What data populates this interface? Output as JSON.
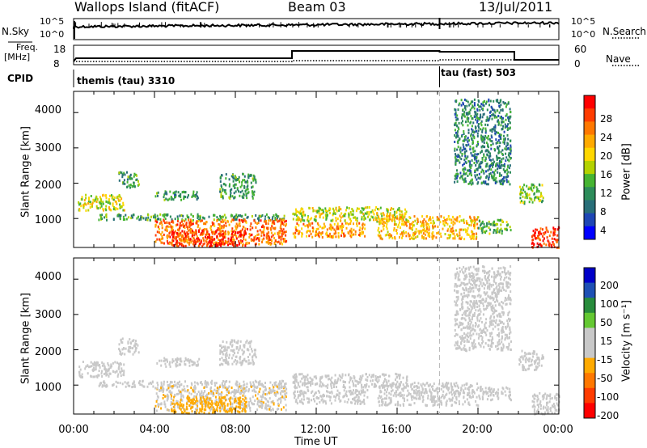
{
  "header": {
    "site": "Wallops Island (fitACF)",
    "beam": "Beam 03",
    "date": "13/Jul/2011"
  },
  "strips": {
    "nsky_label": "N.Sky",
    "nsky_ticks": [
      "10^5",
      "10^0"
    ],
    "nsearch_label": "N.Search",
    "nsearch_ticks": [
      "10^5",
      "10^0"
    ],
    "freq_label_1": "Freq.",
    "freq_label_2": "[MHz]",
    "freq_ticks": [
      "18",
      "8"
    ],
    "nave_label": "Nave",
    "nave_ticks": [
      "60",
      "0"
    ],
    "cpid_label": "CPID",
    "cpid_1": "themis (tau) 3310",
    "cpid_2": "tau (fast) 503"
  },
  "power_panel": {
    "ylabel": "Slant Range [km]",
    "yticks": [
      "4000",
      "3000",
      "2000",
      "1000"
    ],
    "cbar_label": "Power [dB]",
    "cbar_ticks": [
      "28",
      "24",
      "20",
      "16",
      "12",
      "8",
      "4"
    ],
    "cbar_colors": [
      "#ff0000",
      "#ff3c00",
      "#ff7800",
      "#ffaa00",
      "#ffd700",
      "#b4d200",
      "#46b432",
      "#2d8c5a",
      "#286e78",
      "#1e46b4",
      "#0000ff"
    ]
  },
  "velocity_panel": {
    "ylabel": "Slant Range [km]",
    "yticks": [
      "4000",
      "3000",
      "2000",
      "1000"
    ],
    "cbar_label": "Velocity [m s⁻¹]",
    "cbar_ticks": [
      "200",
      "100",
      "50",
      "15",
      "-15",
      "-50",
      "-100",
      "-200"
    ],
    "cbar_colors": [
      "#0000c8",
      "#1e50b4",
      "#288c3c",
      "#64c832",
      "#c8c8c8",
      "#c8c8c8",
      "#ffaa00",
      "#ff7800",
      "#ff3c00",
      "#ff0000"
    ]
  },
  "xaxis": {
    "ticks": [
      "00:00",
      "04:00",
      "08:00",
      "12:00",
      "16:00",
      "20:00",
      "00:00"
    ],
    "label": "Time UT"
  },
  "chart_data": {
    "type": "heatmap",
    "title": "Wallops Island (fitACF)",
    "x_range_hours": [
      0,
      24
    ],
    "y_range_km": [
      180,
      4600
    ],
    "power_range_db": [
      0,
      30
    ],
    "velocity_range": [
      -200,
      200
    ],
    "cpid_change_hour": 18.1,
    "nave_step_hours": [
      10.8,
      18.1,
      21.8
    ],
    "scatter_regions": [
      {
        "t0": 0.2,
        "t1": 2.5,
        "r0": 1250,
        "r1": 1700,
        "power_db": 16,
        "velocity": 0
      },
      {
        "t0": 2.2,
        "t1": 3.2,
        "r0": 1900,
        "r1": 2350,
        "power_db": 10,
        "velocity": 0
      },
      {
        "t0": 4.0,
        "t1": 6.2,
        "r0": 1550,
        "r1": 1800,
        "power_db": 9,
        "velocity": 0
      },
      {
        "t0": 7.2,
        "t1": 9.0,
        "r0": 1600,
        "r1": 2300,
        "power_db": 10,
        "velocity": 0
      },
      {
        "t0": 1.2,
        "t1": 10.5,
        "r0": 980,
        "r1": 1150,
        "power_db": 10,
        "velocity": 0
      },
      {
        "t0": 4.0,
        "t1": 10.5,
        "r0": 300,
        "r1": 1000,
        "power_db": 24,
        "velocity": -30
      },
      {
        "t0": 4.8,
        "t1": 8.5,
        "r0": 230,
        "r1": 700,
        "power_db": 28,
        "velocity": -60
      },
      {
        "t0": 10.8,
        "t1": 16.5,
        "r0": 950,
        "r1": 1350,
        "power_db": 16,
        "velocity": 0
      },
      {
        "t0": 10.8,
        "t1": 14.5,
        "r0": 500,
        "r1": 900,
        "power_db": 22,
        "velocity": 0
      },
      {
        "t0": 15.0,
        "t1": 20.0,
        "r0": 450,
        "r1": 1100,
        "power_db": 20,
        "velocity": 0
      },
      {
        "t0": 20.0,
        "t1": 21.6,
        "r0": 600,
        "r1": 1000,
        "power_db": 12,
        "velocity": 0
      },
      {
        "t0": 22.0,
        "t1": 23.2,
        "r0": 1450,
        "r1": 2000,
        "power_db": 14,
        "velocity": 0
      },
      {
        "t0": 22.6,
        "t1": 24.0,
        "r0": 200,
        "r1": 800,
        "power_db": 28,
        "velocity": 10
      },
      {
        "t0": 18.8,
        "t1": 21.6,
        "r0": 2000,
        "r1": 4400,
        "power_db": 8,
        "velocity": 0
      }
    ]
  }
}
